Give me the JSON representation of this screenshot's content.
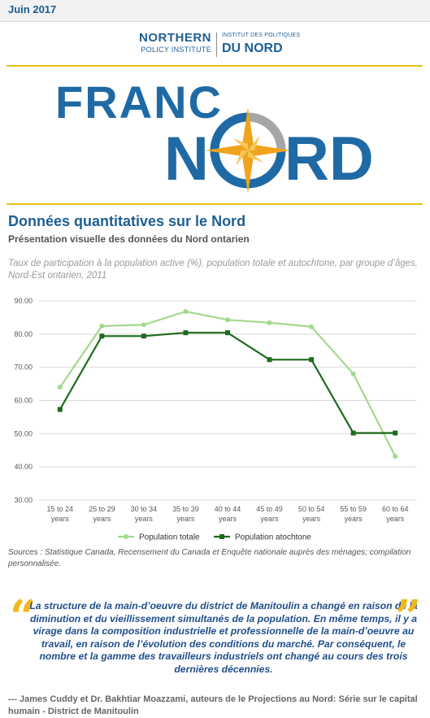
{
  "header": {
    "date": "Juin 2017"
  },
  "npi_logo": {
    "line1": "NORTHERN",
    "line2": "POLICY INSTITUTE",
    "line3": "INSTITUT DES POLITIQUES",
    "line4": "DU NORD"
  },
  "franc_logo": {
    "word1": "FRANC",
    "word2_a": "N",
    "word2_b": "RD",
    "colors": {
      "blue": "#1f6aa5",
      "orange": "#f0a31c",
      "gray": "#a6a6a6"
    }
  },
  "section": {
    "title": "Données quantitatives sur le Nord",
    "subtitle": "Présentation visuelle des données du Nord ontarien"
  },
  "chart_data": {
    "type": "line",
    "title": "Taux de participation à la population active (%), population totale et autochtone, par groupe d’âges, Nord-Est ontarien, 2011",
    "xlabel": "",
    "ylabel": "",
    "categories": [
      [
        "15 to 24",
        "years"
      ],
      [
        "25 to 29",
        "years"
      ],
      [
        "30 to 34",
        "years"
      ],
      [
        "35 to 39",
        "years"
      ],
      [
        "40 to 44",
        "years"
      ],
      [
        "45 to 49",
        "years"
      ],
      [
        "50 to 54",
        "years"
      ],
      [
        "55 to 59",
        "years"
      ],
      [
        "60 to 64",
        "years"
      ]
    ],
    "ylim": [
      30,
      90
    ],
    "yticks": [
      "30.00",
      "40.00",
      "50.00",
      "60.00",
      "70.00",
      "80.00",
      "90.00"
    ],
    "grid": true,
    "legend_position": "bottom",
    "series": [
      {
        "name": "Population totale",
        "color": "#a3d98c",
        "marker": "circle",
        "values": [
          64.0,
          82.4,
          82.8,
          86.8,
          84.3,
          83.4,
          82.2,
          68.0,
          43.2
        ]
      },
      {
        "name": "Population atochtone",
        "color": "#1e6a1e",
        "marker": "square",
        "values": [
          57.3,
          79.4,
          79.4,
          80.4,
          80.4,
          72.3,
          72.3,
          50.2,
          50.2
        ]
      }
    ]
  },
  "sources": "Sources : Statistique Canada, Recensement du Canada et Enquête nationale auprès des ménages; compilation personnalisée.",
  "quote": {
    "text": "La structure de la main-d’oeuvre du district de Manitoulin a changé en raison de la diminution et du vieillissement simultanés de la population. En même temps, il y a virage dans la composition industrielle et professionnelle de la main-d’oeuvre au travail, en raison de l’évolution des conditions du marché. Par conséquent, le nombre et la gamme des travailleurs industriels ont changé au cours des trois dernières décennies.",
    "open_mark": "“",
    "close_mark": "”",
    "mark_color": "#f0b81c"
  },
  "attribution": "--- James Cuddy et Dr. Bakhtiar Moazzami, auteurs de le Projections au Nord: Série sur le capital humain - District de Manitoulin"
}
